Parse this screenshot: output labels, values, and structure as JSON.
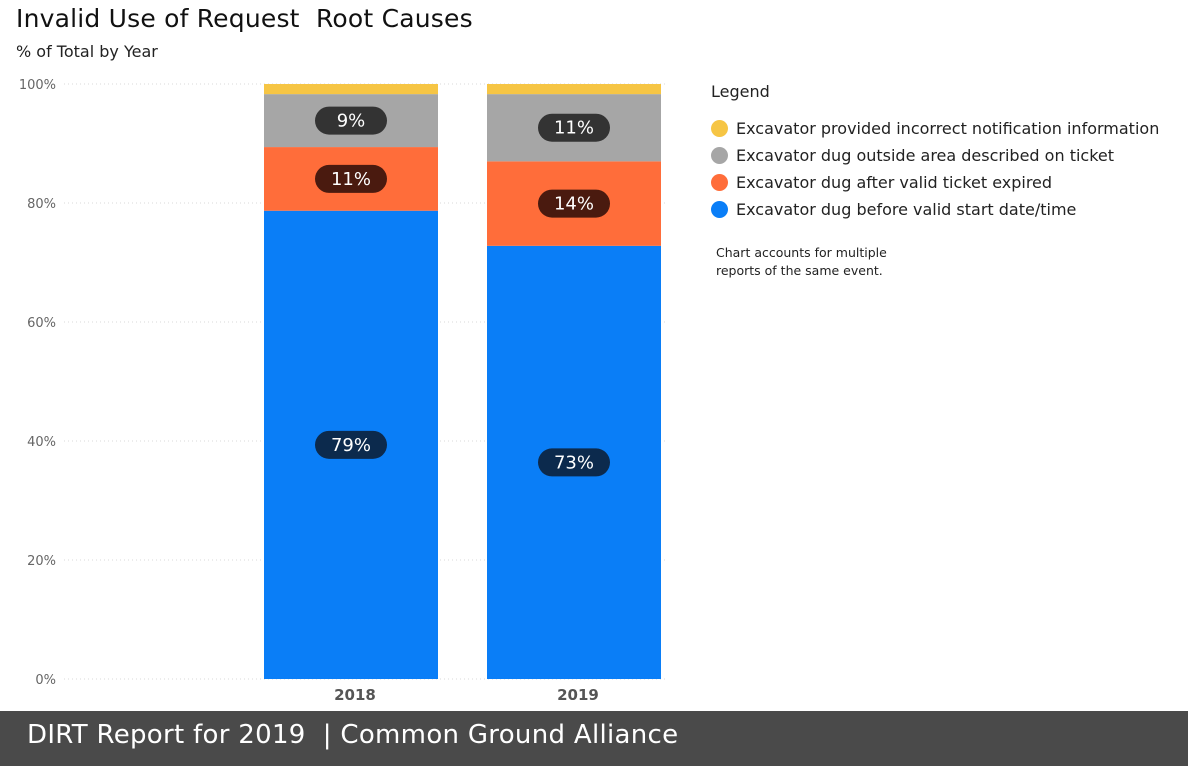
{
  "header": {
    "title": "Invalid Use of Request  Root Causes",
    "subtitle": "% of Total by Year"
  },
  "legend": {
    "title": "Legend",
    "items": [
      {
        "label": "Excavator provided incorrect notification information",
        "color": "#f6c544"
      },
      {
        "label": "Excavator dug outside area described on ticket",
        "color": "#a6a6a6"
      },
      {
        "label": "Excavator dug after valid ticket expired",
        "color": "#ff6d3a"
      },
      {
        "label": "Excavator dug before valid start date/time",
        "color": "#0a7ef7"
      }
    ]
  },
  "note": {
    "line1": "Chart accounts for multiple",
    "line2": "reports of the same event."
  },
  "footer": {
    "text": "DIRT Report for 2019  | Common Ground Alliance"
  },
  "chart_data": {
    "type": "bar",
    "stacked": true,
    "normalized": true,
    "categories": [
      "2018",
      "2019"
    ],
    "series": [
      {
        "name": "Excavator dug before valid start date/time",
        "color": "#0a7ef7",
        "values": [
          78.7,
          72.8
        ],
        "labels": [
          "79%",
          "73%"
        ],
        "label_bg": "#0c2a4d"
      },
      {
        "name": "Excavator dug after valid ticket expired",
        "color": "#ff6d3a",
        "values": [
          10.7,
          14.2
        ],
        "labels": [
          "11%",
          "14%"
        ],
        "label_bg": "#4a1a0f"
      },
      {
        "name": "Excavator dug outside area described on ticket",
        "color": "#a6a6a6",
        "values": [
          8.9,
          11.3
        ],
        "labels": [
          "9%",
          "11%"
        ],
        "label_bg": "#333333"
      },
      {
        "name": "Excavator provided incorrect notification information",
        "color": "#f6c544",
        "values": [
          1.7,
          1.7
        ],
        "labels": [
          "",
          ""
        ],
        "label_bg": "#333333"
      }
    ],
    "yticks": [
      "0%",
      "20%",
      "40%",
      "60%",
      "80%",
      "100%"
    ],
    "ylim": [
      0,
      100
    ],
    "grid": true,
    "legend_position": "right"
  }
}
